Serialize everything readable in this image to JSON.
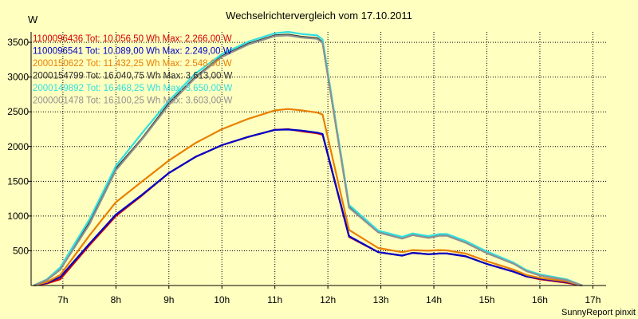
{
  "chart_data": {
    "type": "line",
    "title": "Wechselrichtervergleich vom 17.10.2011",
    "ylabel": "W",
    "xlabel": "",
    "footer": "SunnyReport pinxit",
    "xlim": [
      6.4,
      17.25
    ],
    "ylim": [
      0,
      3650
    ],
    "x_ticks": [
      7,
      8,
      9,
      10,
      11,
      12,
      13,
      14,
      15,
      16,
      17
    ],
    "x_tick_labels": [
      "7h",
      "8h",
      "9h",
      "10h",
      "11h",
      "12h",
      "13h",
      "14h",
      "15h",
      "16h",
      "17h"
    ],
    "y_ticks": [
      500,
      1000,
      1500,
      2000,
      2500,
      3000,
      3500
    ],
    "y_tick_labels": [
      "500",
      "1000",
      "1500",
      "2000",
      "2500",
      "3000",
      "3500"
    ],
    "legend_position": "top-left",
    "series": [
      {
        "name": "1100096436",
        "legend": "1100096436 Tot: 10.056,50 Wh Max: 2.266,00 W",
        "color": "#d40000",
        "x": [
          6.45,
          6.7,
          6.95,
          7.5,
          8.0,
          8.5,
          9.0,
          9.5,
          10.0,
          10.5,
          11.0,
          11.25,
          11.5,
          11.8,
          11.9,
          12.4,
          12.95,
          13.4,
          13.6,
          13.75,
          13.9,
          14.1,
          14.25,
          14.6,
          15.0,
          15.5,
          15.75,
          16.0,
          16.5,
          16.8
        ],
        "values": [
          0,
          30,
          90,
          580,
          1000,
          1300,
          1620,
          1850,
          2020,
          2140,
          2240,
          2250,
          2220,
          2190,
          2170,
          700,
          480,
          430,
          470,
          460,
          450,
          460,
          460,
          420,
          310,
          200,
          130,
          90,
          40,
          0
        ]
      },
      {
        "name": "1100096541",
        "legend": "1100096541 Tot: 10.089,00 Wh Max: 2.249,00 W",
        "color": "#0000c8",
        "x": [
          6.45,
          6.7,
          6.95,
          7.5,
          8.0,
          8.5,
          9.0,
          9.5,
          10.0,
          10.5,
          11.0,
          11.25,
          11.5,
          11.8,
          11.9,
          12.4,
          12.95,
          13.4,
          13.6,
          13.75,
          13.9,
          14.1,
          14.25,
          14.6,
          15.0,
          15.5,
          15.75,
          16.0,
          16.5,
          16.8
        ],
        "values": [
          0,
          40,
          120,
          600,
          1020,
          1310,
          1620,
          1850,
          2020,
          2140,
          2240,
          2245,
          2230,
          2200,
          2180,
          710,
          480,
          430,
          470,
          460,
          450,
          460,
          460,
          420,
          310,
          200,
          130,
          100,
          50,
          0
        ]
      },
      {
        "name": "2000150622",
        "legend": "2000150622 Tot: 11.432,25 Wh Max: 2.548,00 W",
        "color": "#e88000",
        "x": [
          6.45,
          6.7,
          6.95,
          7.5,
          8.0,
          8.5,
          9.0,
          9.5,
          10.0,
          10.5,
          11.0,
          11.25,
          11.5,
          11.8,
          11.9,
          12.4,
          12.95,
          13.4,
          13.6,
          13.75,
          13.9,
          14.1,
          14.25,
          14.6,
          15.0,
          15.5,
          15.75,
          16.0,
          16.5,
          16.8
        ],
        "values": [
          0,
          50,
          150,
          720,
          1200,
          1500,
          1800,
          2050,
          2250,
          2400,
          2520,
          2540,
          2520,
          2490,
          2460,
          800,
          540,
          480,
          510,
          505,
          500,
          510,
          505,
          460,
          350,
          230,
          150,
          110,
          60,
          0
        ]
      },
      {
        "name": "2000154799",
        "legend": "2000154799 Tot: 16.040,75 Wh Max: 3.613,00 W",
        "color": "#303030",
        "x": [
          6.45,
          6.7,
          6.95,
          7.5,
          8.0,
          8.5,
          9.0,
          9.5,
          10.0,
          10.5,
          11.0,
          11.25,
          11.5,
          11.8,
          11.9,
          12.4,
          12.95,
          13.4,
          13.6,
          13.75,
          13.9,
          14.1,
          14.25,
          14.6,
          15.0,
          15.5,
          15.75,
          16.0,
          16.5,
          16.8
        ],
        "values": [
          0,
          80,
          230,
          900,
          1680,
          2120,
          2620,
          3000,
          3300,
          3480,
          3600,
          3610,
          3580,
          3560,
          3500,
          1130,
          770,
          680,
          730,
          710,
          690,
          720,
          720,
          620,
          470,
          320,
          210,
          150,
          80,
          0
        ]
      },
      {
        "name": "2000149892",
        "legend": "2000149892 Tot: 16.468,25 Wh Max: 3.650,00 W",
        "color": "#30e0e0",
        "x": [
          6.45,
          6.7,
          6.95,
          7.5,
          8.0,
          8.5,
          9.0,
          9.5,
          10.0,
          10.5,
          11.0,
          11.25,
          11.5,
          11.8,
          11.9,
          12.4,
          12.95,
          13.4,
          13.6,
          13.75,
          13.9,
          14.1,
          14.25,
          14.6,
          15.0,
          15.5,
          15.75,
          16.0,
          16.5,
          16.8
        ],
        "values": [
          0,
          90,
          260,
          950,
          1720,
          2200,
          2660,
          3050,
          3330,
          3510,
          3630,
          3650,
          3620,
          3600,
          3540,
          1160,
          790,
          700,
          750,
          730,
          710,
          740,
          740,
          640,
          490,
          330,
          220,
          160,
          90,
          0
        ]
      },
      {
        "name": "2000001478",
        "legend": "2000001478 Tot: 16.100,25 Wh Max: 3.603,00 W",
        "color": "#909090",
        "x": [
          6.45,
          6.7,
          6.95,
          7.5,
          8.0,
          8.5,
          9.0,
          9.5,
          10.0,
          10.5,
          11.0,
          11.25,
          11.5,
          11.8,
          11.9,
          12.4,
          12.95,
          13.4,
          13.6,
          13.75,
          13.9,
          14.1,
          14.25,
          14.6,
          15.0,
          15.5,
          15.75,
          16.0,
          16.5,
          16.8
        ],
        "values": [
          0,
          80,
          230,
          880,
          1660,
          2110,
          2600,
          2990,
          3290,
          3470,
          3590,
          3600,
          3570,
          3550,
          3490,
          1120,
          765,
          675,
          725,
          705,
          685,
          715,
          715,
          615,
          465,
          315,
          205,
          145,
          78,
          0
        ]
      }
    ]
  },
  "style": {
    "background": "#ffffc0",
    "plot_background": "#ffffc0",
    "axis_color": "#000000",
    "grid_color": "#000000"
  }
}
